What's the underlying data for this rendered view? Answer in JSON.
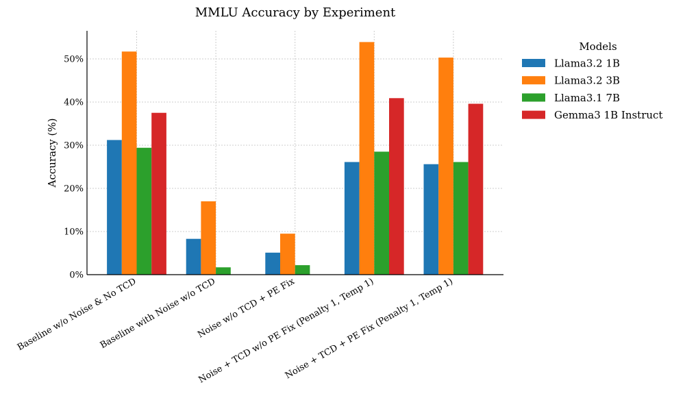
{
  "chart_data": {
    "type": "bar",
    "title": "MMLU Accuracy by Experiment",
    "xlabel": "",
    "ylabel": "Accuracy (%)",
    "ylim": [
      0,
      56.5
    ],
    "yticks": [
      "0%",
      "10%",
      "20%",
      "30%",
      "40%",
      "50%"
    ],
    "grid": true,
    "legend_title": "Models",
    "legend_position": "outside-right",
    "categories": [
      "Baseline w/o Noise & No TCD",
      "Baseline with Noise w/o TCD",
      "Noise w/o TCD + PE Fix",
      "Noise + TCD w/o PE Fix (Penalty 1, Temp 1)",
      "Noise + TCD + PE Fix (Penalty 1, Temp 1)"
    ],
    "series": [
      {
        "name": "Llama3.2 1B",
        "color": "#1f77b4",
        "values": [
          31.2,
          8.3,
          5.1,
          26.1,
          25.6
        ]
      },
      {
        "name": "Llama3.2 3B",
        "color": "#ff7f0e",
        "values": [
          51.7,
          17.0,
          9.5,
          53.9,
          50.3
        ]
      },
      {
        "name": "Llama3.1 7B",
        "color": "#2ca02c",
        "values": [
          29.4,
          1.7,
          2.2,
          28.5,
          26.1
        ]
      },
      {
        "name": "Gemma3 1B Instruct",
        "color": "#d62728",
        "values": [
          37.5,
          0,
          0,
          40.9,
          39.6
        ]
      }
    ]
  }
}
